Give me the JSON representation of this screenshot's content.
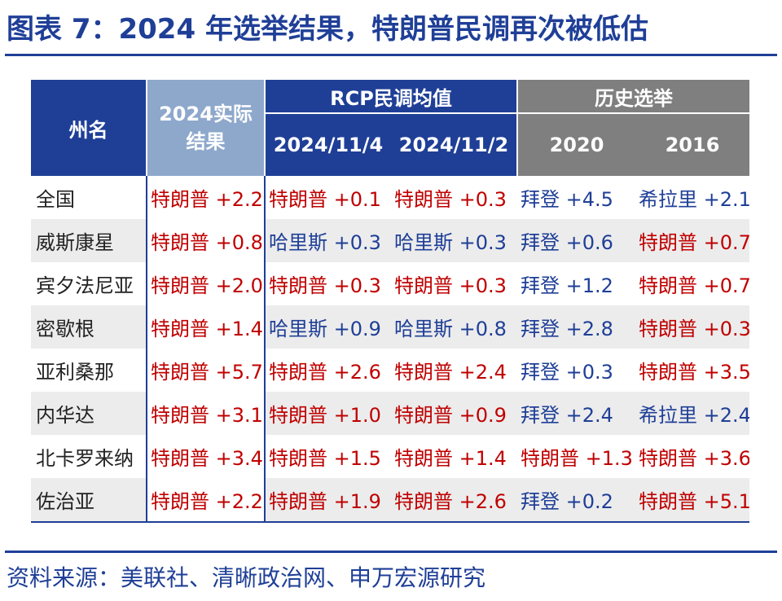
{
  "title": "图表 7：2024 年选举结果，特朗普民调再次被低估",
  "source": "资料来源：美联社、清晰政治网、申万宏源研究",
  "headers": {
    "state": "州名",
    "actual_line1": "2024实际",
    "actual_line2": "结果",
    "rcp": "RCP民调均值",
    "rcp_date1": "2024/11/4",
    "rcp_date2": "2024/11/2",
    "history": "历史选举",
    "year1": "2020",
    "year2": "2016"
  },
  "rows": [
    {
      "state": "全国",
      "actual": "特朗普 +2.2",
      "rcp1": "特朗普 +0.1",
      "rcp2": "特朗普 +0.3",
      "y2020": "拜登 +4.5",
      "y2016": "希拉里 +2.1",
      "party": [
        "rep",
        "rep",
        "rep",
        "dem",
        "dem"
      ]
    },
    {
      "state": "威斯康星",
      "actual": "特朗普 +0.8",
      "rcp1": "哈里斯 +0.3",
      "rcp2": "哈里斯 +0.3",
      "y2020": "拜登 +0.6",
      "y2016": "特朗普 +0.7",
      "party": [
        "rep",
        "dem",
        "dem",
        "dem",
        "rep"
      ]
    },
    {
      "state": "宾夕法尼亚",
      "actual": "特朗普 +2.0",
      "rcp1": "特朗普 +0.3",
      "rcp2": "特朗普 +0.3",
      "y2020": "拜登 +1.2",
      "y2016": "特朗普 +0.7",
      "party": [
        "rep",
        "rep",
        "rep",
        "dem",
        "rep"
      ]
    },
    {
      "state": "密歇根",
      "actual": "特朗普 +1.4",
      "rcp1": "哈里斯 +0.9",
      "rcp2": "哈里斯 +0.8",
      "y2020": "拜登 +2.8",
      "y2016": "特朗普 +0.3",
      "party": [
        "rep",
        "dem",
        "dem",
        "dem",
        "rep"
      ]
    },
    {
      "state": "亚利桑那",
      "actual": "特朗普 +5.7",
      "rcp1": "特朗普 +2.6",
      "rcp2": "特朗普 +2.4",
      "y2020": "拜登 +0.3",
      "y2016": "特朗普 +3.5",
      "party": [
        "rep",
        "rep",
        "rep",
        "dem",
        "rep"
      ]
    },
    {
      "state": "内华达",
      "actual": "特朗普 +3.1",
      "rcp1": "特朗普 +1.0",
      "rcp2": "特朗普 +0.9",
      "y2020": "拜登 +2.4",
      "y2016": "希拉里 +2.4",
      "party": [
        "rep",
        "rep",
        "rep",
        "dem",
        "dem"
      ]
    },
    {
      "state": "北卡罗来纳",
      "actual": "特朗普 +3.4",
      "rcp1": "特朗普 +1.5",
      "rcp2": "特朗普 +1.4",
      "y2020": "特朗普 +1.3",
      "y2016": "特朗普 +3.6",
      "party": [
        "rep",
        "rep",
        "rep",
        "rep",
        "rep"
      ]
    },
    {
      "state": "佐治亚",
      "actual": "特朗普 +2.2",
      "rcp1": "特朗普 +1.9",
      "rcp2": "特朗普 +2.6",
      "y2020": "拜登 +0.2",
      "y2016": "特朗普 +5.1",
      "party": [
        "rep",
        "rep",
        "rep",
        "dem",
        "rep"
      ]
    }
  ]
}
